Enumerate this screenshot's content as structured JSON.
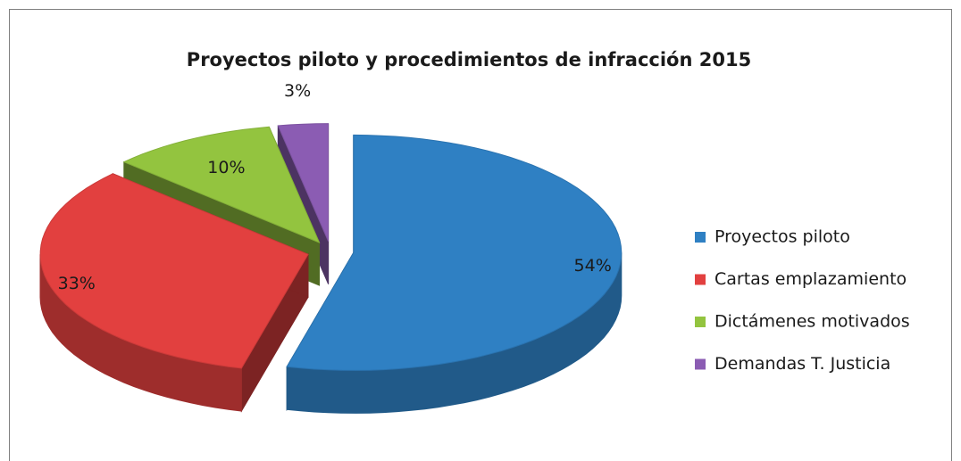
{
  "chart_data": {
    "type": "pie3d",
    "title": "Proyectos piloto y procedimientos de infracción 2015",
    "categories": [
      "Proyectos piloto",
      "Cartas emplazamiento",
      "Dictámenes motivados",
      "Demandas T. Justicia"
    ],
    "values": [
      54,
      33,
      10,
      3
    ],
    "value_labels": [
      "54%",
      "33%",
      "10%",
      "3%"
    ],
    "colors": [
      "#2f80c3",
      "#e2403f",
      "#93c43f",
      "#8b5cb3"
    ],
    "legend": "right"
  }
}
